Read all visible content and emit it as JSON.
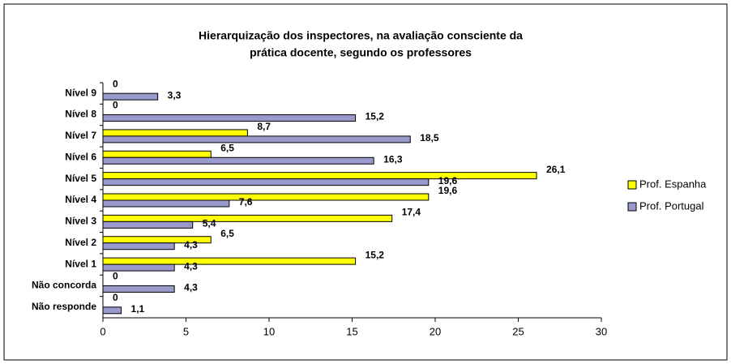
{
  "chart_data": {
    "type": "hbar",
    "title": [
      "Hierarquização dos inspectores,  na avaliação consciente da",
      "prática docente, segundo os professores"
    ],
    "categories": [
      "Nível 9",
      "Nível 8",
      "Nível 7",
      "Nível 6",
      "Nível 5",
      "Nível 4",
      "Nível 3",
      "Nível 2",
      "Nível 1",
      "Não concorda",
      "Não responde"
    ],
    "series": [
      {
        "name": "Prof. Espanha",
        "color": "#ffff00",
        "values": [
          0,
          0,
          8.7,
          6.5,
          26.1,
          19.6,
          17.4,
          6.5,
          15.2,
          0,
          0
        ],
        "value_labels": [
          "0",
          "0",
          "8,7",
          "6,5",
          "26,1",
          "19,6",
          "17,4",
          "6,5",
          "15,2",
          "0",
          "0"
        ]
      },
      {
        "name": "Prof. Portugal",
        "color": "#9999cc",
        "values": [
          3.3,
          15.2,
          18.5,
          16.3,
          19.6,
          7.6,
          5.4,
          4.3,
          4.3,
          4.3,
          1.1
        ],
        "value_labels": [
          "3,3",
          "15,2",
          "18,5",
          "16,3",
          "19,6",
          "7,6",
          "5,4",
          "4,3",
          "4,3",
          "4,3",
          "1,1"
        ]
      }
    ],
    "xlim": [
      0,
      30
    ],
    "xticks": [
      0,
      5,
      10,
      15,
      20,
      25,
      30
    ],
    "legend": "right"
  }
}
